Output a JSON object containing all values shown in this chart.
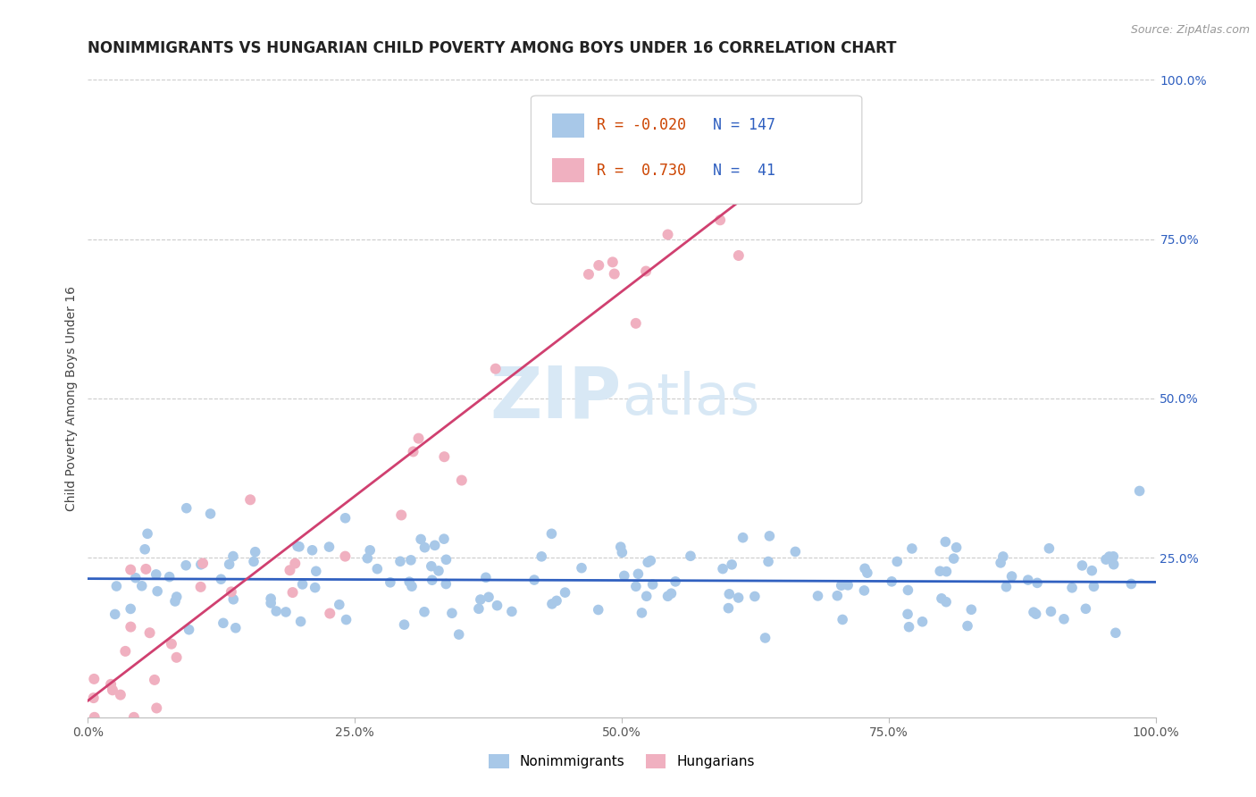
{
  "title": "NONIMMIGRANTS VS HUNGARIAN CHILD POVERTY AMONG BOYS UNDER 16 CORRELATION CHART",
  "source": "Source: ZipAtlas.com",
  "ylabel": "Child Poverty Among Boys Under 16",
  "xlim": [
    0.0,
    1.0
  ],
  "ylim": [
    0.0,
    1.0
  ],
  "xtick_labels": [
    "0.0%",
    "25.0%",
    "50.0%",
    "75.0%",
    "100.0%"
  ],
  "xtick_positions": [
    0.0,
    0.25,
    0.5,
    0.75,
    1.0
  ],
  "ytick_labels_right": [
    "100.0%",
    "75.0%",
    "50.0%",
    "25.0%"
  ],
  "ytick_positions_right": [
    1.0,
    0.75,
    0.5,
    0.25
  ],
  "legend_nonimm": "Nonimmigrants",
  "legend_hung": "Hungarians",
  "R_nonimm": -0.02,
  "N_nonimm": 147,
  "R_hung": 0.73,
  "N_hung": 41,
  "color_nonimm": "#a8c8e8",
  "color_hung": "#f0b0c0",
  "line_color_nonimm": "#3060c0",
  "line_color_hung": "#d04070",
  "watermark_zip": "ZIP",
  "watermark_atlas": "atlas",
  "watermark_color": "#d8e8f5",
  "background_color": "#ffffff",
  "grid_color": "#cccccc",
  "title_fontsize": 12,
  "source_fontsize": 9,
  "axis_label_fontsize": 10,
  "tick_fontsize": 10
}
